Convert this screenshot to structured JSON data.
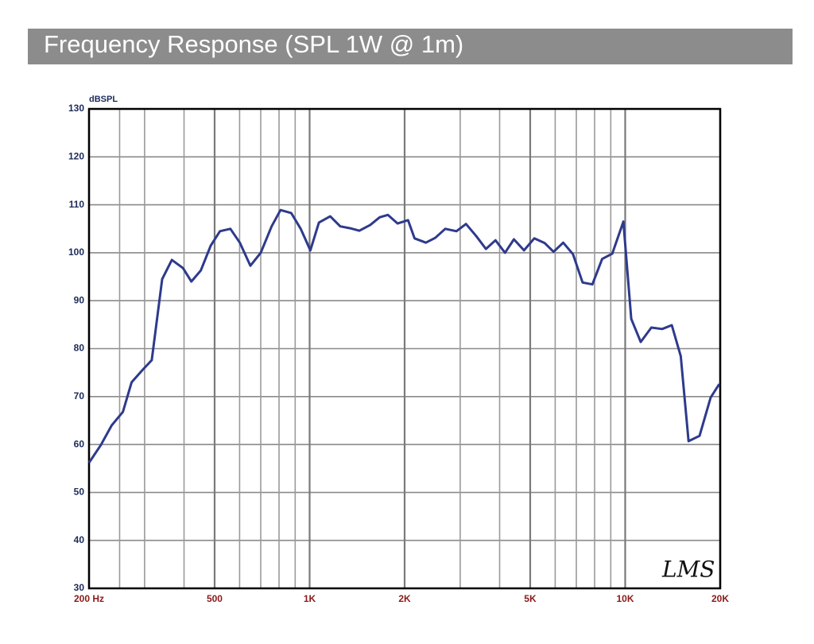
{
  "chart_data": {
    "type": "line",
    "title": "Frequency Response (SPL 1W @ 1m)",
    "y_label": "dBSPL",
    "annotation": "LMS",
    "log_x": true,
    "grid": true,
    "color": "#2e3a8c",
    "x": [
      200,
      218,
      236,
      256,
      273,
      296,
      316,
      341,
      366,
      397,
      422,
      452,
      486,
      520,
      561,
      601,
      649,
      700,
      758,
      809,
      874,
      937,
      1005,
      1070,
      1162,
      1250,
      1345,
      1437,
      1557,
      1667,
      1770,
      1900,
      2050,
      2150,
      2335,
      2500,
      2690,
      2920,
      3130,
      3370,
      3620,
      3880,
      4160,
      4440,
      4780,
      5150,
      5560,
      5930,
      6360,
      6830,
      7330,
      7870,
      8450,
      9100,
      9870,
      10450,
      11200,
      12100,
      13100,
      14050,
      15000,
      15880,
      17200,
      18650,
      19860
    ],
    "values": [
      56.2,
      59.9,
      64.0,
      66.8,
      73.0,
      75.6,
      77.6,
      94.5,
      98.5,
      96.8,
      94.0,
      96.3,
      101.5,
      104.5,
      105.0,
      102.1,
      97.3,
      100.0,
      105.5,
      108.9,
      108.3,
      105.0,
      100.5,
      106.3,
      107.6,
      105.5,
      105.1,
      104.6,
      105.8,
      107.4,
      107.9,
      106.1,
      106.8,
      103.0,
      102.1,
      103.1,
      105.0,
      104.5,
      106.0,
      103.5,
      100.8,
      102.6,
      100.0,
      102.8,
      100.5,
      103.0,
      102.0,
      100.2,
      102.1,
      99.7,
      93.8,
      93.4,
      98.7,
      99.8,
      106.5,
      86.2,
      81.4,
      84.4,
      84.1,
      84.9,
      78.4,
      60.7,
      61.8,
      69.8,
      72.6
    ],
    "xlim": [
      200,
      20000
    ],
    "xticks": [
      {
        "value": 200,
        "label": "200 Hz"
      },
      500,
      {
        "value": 1000,
        "label": "1K"
      },
      {
        "value": 2000,
        "label": "2K"
      },
      {
        "value": 5000,
        "label": "5K"
      },
      {
        "value": 10000,
        "label": "10K"
      },
      {
        "value": 20000,
        "label": "20K"
      }
    ],
    "xminor": [
      250,
      300,
      400,
      600,
      700,
      800,
      900,
      3000,
      4000,
      6000,
      7000,
      8000,
      9000
    ],
    "ylim": [
      30,
      130
    ],
    "yticks": [
      30,
      40,
      50,
      60,
      70,
      80,
      90,
      100,
      110,
      120,
      130
    ]
  }
}
